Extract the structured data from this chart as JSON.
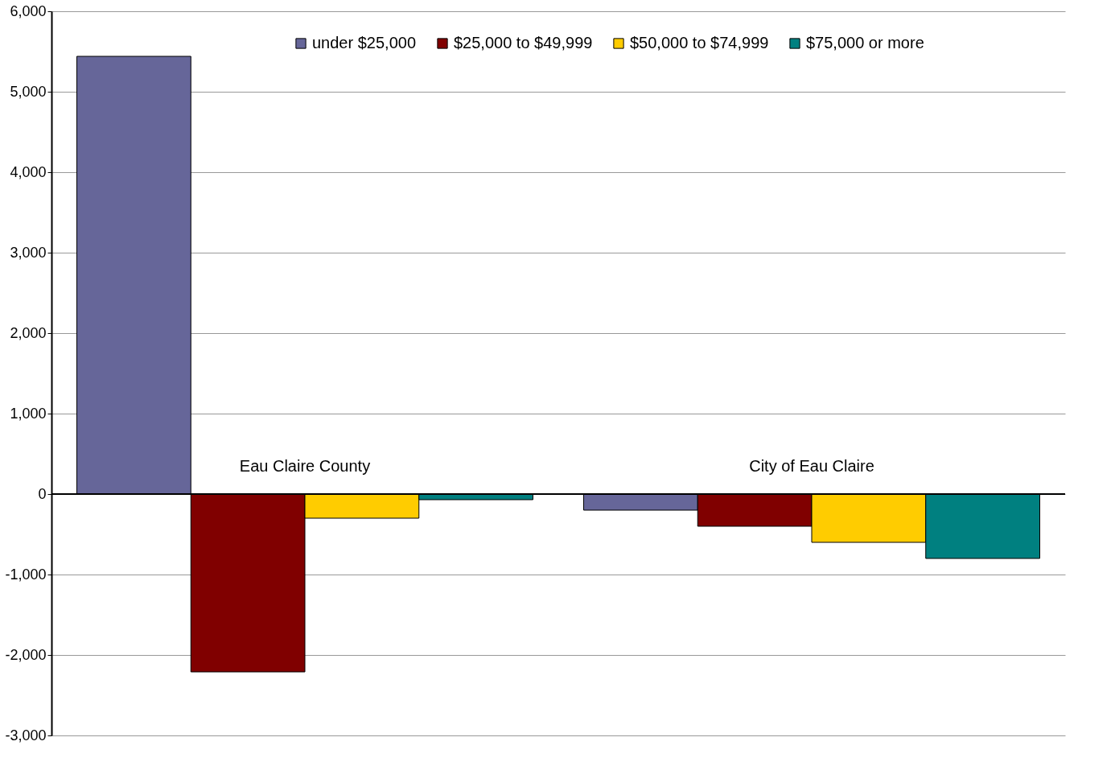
{
  "chart_data": {
    "type": "bar",
    "categories": [
      "Eau Claire  County",
      "City of Eau Claire"
    ],
    "series": [
      {
        "name": "under $25,000",
        "color": "#666699",
        "values": [
          5440,
          -200
        ]
      },
      {
        "name": "$25,000 to $49,999",
        "color": "#800000",
        "values": [
          -2210,
          -400
        ]
      },
      {
        "name": "$50,000 to $74,999",
        "color": "#ffcc00",
        "values": [
          -300,
          -600
        ]
      },
      {
        "name": "$75,000 or more",
        "color": "#008080",
        "values": [
          -70,
          -800
        ]
      }
    ],
    "ylim": [
      -3000,
      6000
    ],
    "yticks": [
      {
        "value": -3000,
        "label": "-3,000"
      },
      {
        "value": -2000,
        "label": "-2,000"
      },
      {
        "value": -1000,
        "label": "-1,000"
      },
      0,
      {
        "value": 1000,
        "label": "1,000"
      },
      {
        "value": 2000,
        "label": "2,000"
      },
      {
        "value": 3000,
        "label": "3,000"
      },
      {
        "value": 4000,
        "label": "4,000"
      },
      {
        "value": 5000,
        "label": "5,000"
      },
      {
        "value": 6000,
        "label": "6,000"
      }
    ],
    "grid": "y",
    "legend": "top"
  }
}
